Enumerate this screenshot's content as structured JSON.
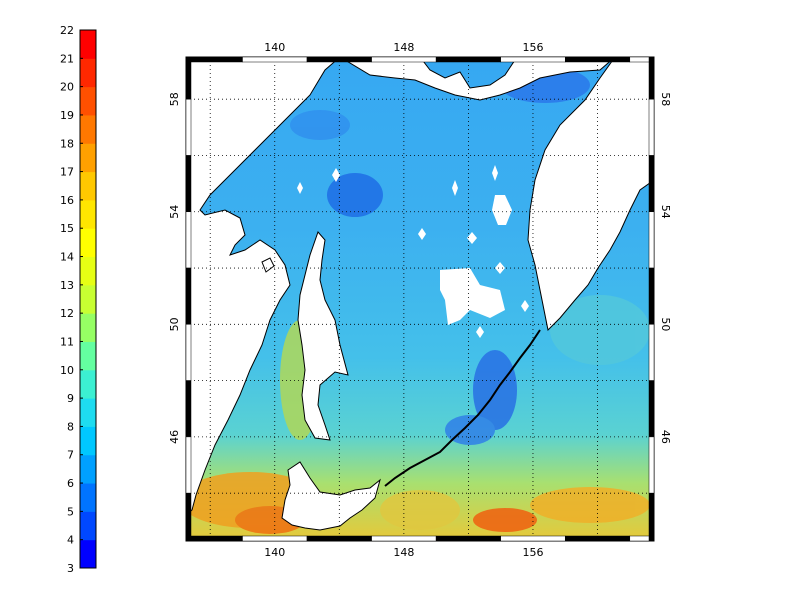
{
  "colorbar": {
    "min": 3,
    "max": 22,
    "labels": [
      "22",
      "21",
      "20",
      "19",
      "18",
      "17",
      "16",
      "15",
      "14",
      "13",
      "12",
      "11",
      "10",
      "9",
      "8",
      "7",
      "6",
      "5",
      "4",
      "3"
    ],
    "colors": [
      "#0000ff",
      "#0048ff",
      "#0074ff",
      "#00a0ff",
      "#00c8ff",
      "#1edcf0",
      "#3cf0d2",
      "#64ffa0",
      "#96ff64",
      "#c8ff32",
      "#e6ff14",
      "#ffff00",
      "#ffe600",
      "#ffc800",
      "#ffa000",
      "#ff7800",
      "#ff5000",
      "#ff2800",
      "#ff0000"
    ]
  },
  "map": {
    "lon_ticks": [
      "140",
      "148",
      "156"
    ],
    "lat_ticks": [
      "58",
      "54",
      "50",
      "46"
    ],
    "lon_range": [
      134.5,
      163.5
    ],
    "lat_range": [
      42.3,
      59.5
    ],
    "land_color": "#ffffff",
    "coast_color": "#000000"
  }
}
